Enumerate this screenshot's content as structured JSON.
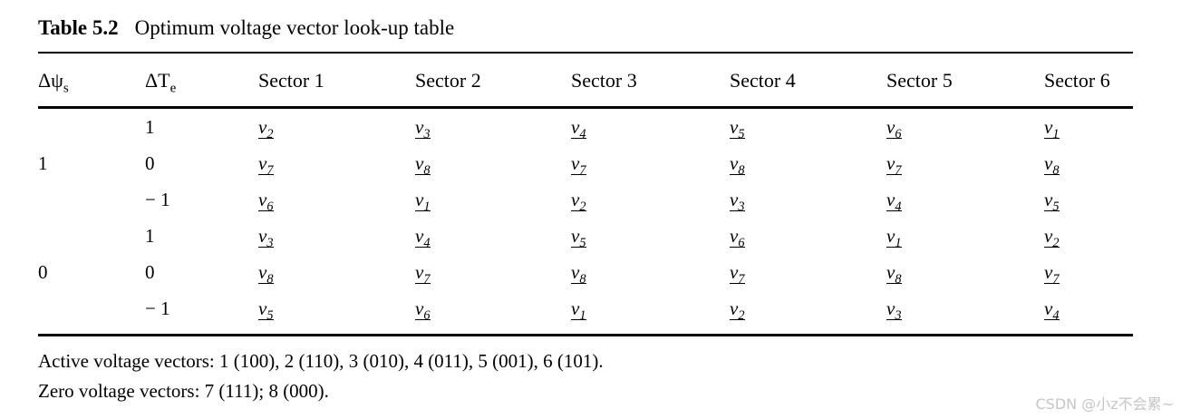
{
  "title": {
    "label": "Table 5.2",
    "caption": "Optimum voltage vector look-up table"
  },
  "table": {
    "col_headers": [
      {
        "key": "flux",
        "base": "Δψ",
        "sub": "s"
      },
      {
        "key": "torque",
        "base": "ΔT",
        "sub": "e"
      },
      {
        "key": "sector1",
        "base": "Sector 1",
        "sub": ""
      },
      {
        "key": "sector2",
        "base": "Sector 2",
        "sub": ""
      },
      {
        "key": "sector3",
        "base": "Sector 3",
        "sub": ""
      },
      {
        "key": "sector4",
        "base": "Sector 4",
        "sub": ""
      },
      {
        "key": "sector5",
        "base": "Sector 5",
        "sub": ""
      },
      {
        "key": "sector6",
        "base": "Sector 6",
        "sub": ""
      }
    ],
    "groups": [
      {
        "flux": "1",
        "rows": [
          {
            "torque": "1",
            "cells": [
              "v2",
              "v3",
              "v4",
              "v5",
              "v6",
              "v1"
            ]
          },
          {
            "torque": "0",
            "cells": [
              "v7",
              "v8",
              "v7",
              "v8",
              "v7",
              "v8"
            ]
          },
          {
            "torque": "− 1",
            "cells": [
              "v6",
              "v1",
              "v2",
              "v3",
              "v4",
              "v5"
            ]
          }
        ]
      },
      {
        "flux": "0",
        "rows": [
          {
            "torque": "1",
            "cells": [
              "v3",
              "v4",
              "v5",
              "v6",
              "v1",
              "v2"
            ]
          },
          {
            "torque": "0",
            "cells": [
              "v8",
              "v7",
              "v8",
              "v7",
              "v8",
              "v7"
            ]
          },
          {
            "torque": "− 1",
            "cells": [
              "v5",
              "v6",
              "v1",
              "v2",
              "v3",
              "v4"
            ]
          }
        ]
      }
    ]
  },
  "footnotes": [
    "Active voltage vectors: 1 (100), 2 (110), 3 (010), 4 (011), 5 (001), 6 (101).",
    "Zero voltage vectors: 7 (111); 8 (000)."
  ],
  "watermark": "CSDN @小z不会累~"
}
